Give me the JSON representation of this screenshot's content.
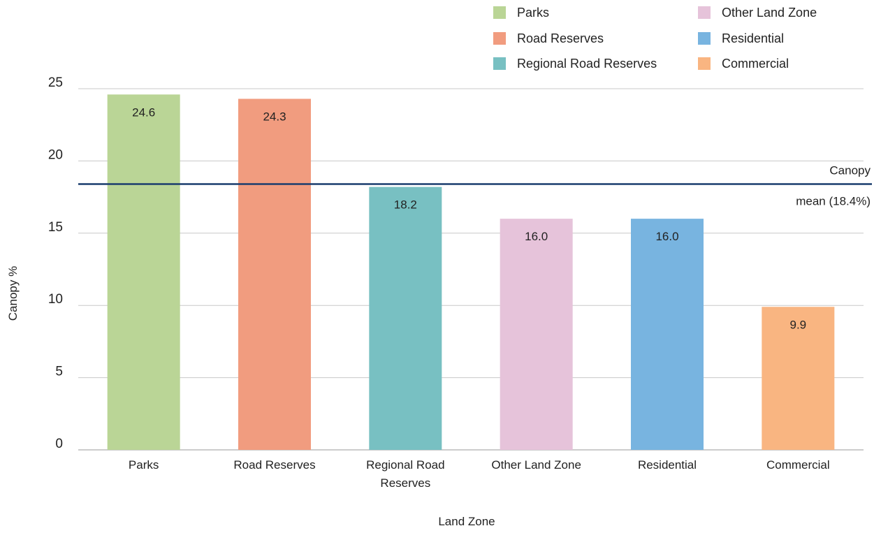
{
  "chart_data": {
    "type": "bar",
    "categories": [
      "Parks",
      "Road Reserves",
      "Regional Road Reserves",
      "Other Land Zone",
      "Residential",
      "Commercial"
    ],
    "category_label_lines": [
      [
        "Parks"
      ],
      [
        "Road Reserves"
      ],
      [
        "Regional Road",
        "Reserves"
      ],
      [
        "Other Land Zone"
      ],
      [
        "Residential"
      ],
      [
        "Commercial"
      ]
    ],
    "values": [
      24.6,
      24.3,
      18.2,
      16.0,
      16.0,
      9.9
    ],
    "value_labels": [
      "24.6",
      "24.3",
      "18.2",
      "16.0",
      "16.0",
      "9.9"
    ],
    "colors": [
      "#bad596",
      "#f19c7f",
      "#78c0c2",
      "#e6c3da",
      "#78b4e0",
      "#f9b581"
    ],
    "xlabel": "Land Zone",
    "ylabel": "Canopy %",
    "ylim": [
      0,
      25
    ],
    "yticks": [
      0,
      5,
      10,
      15,
      20,
      25
    ],
    "grid": true,
    "legend": {
      "position": "top-right",
      "entries": [
        "Parks",
        "Road Reserves",
        "Regional Road Reserves",
        "Other Land Zone",
        "Residential",
        "Commercial"
      ]
    },
    "reference_line": {
      "value": 18.4,
      "label_line1": "Canopy",
      "label_line2": "mean (18.4%)",
      "color": "#1a3d6e"
    }
  }
}
